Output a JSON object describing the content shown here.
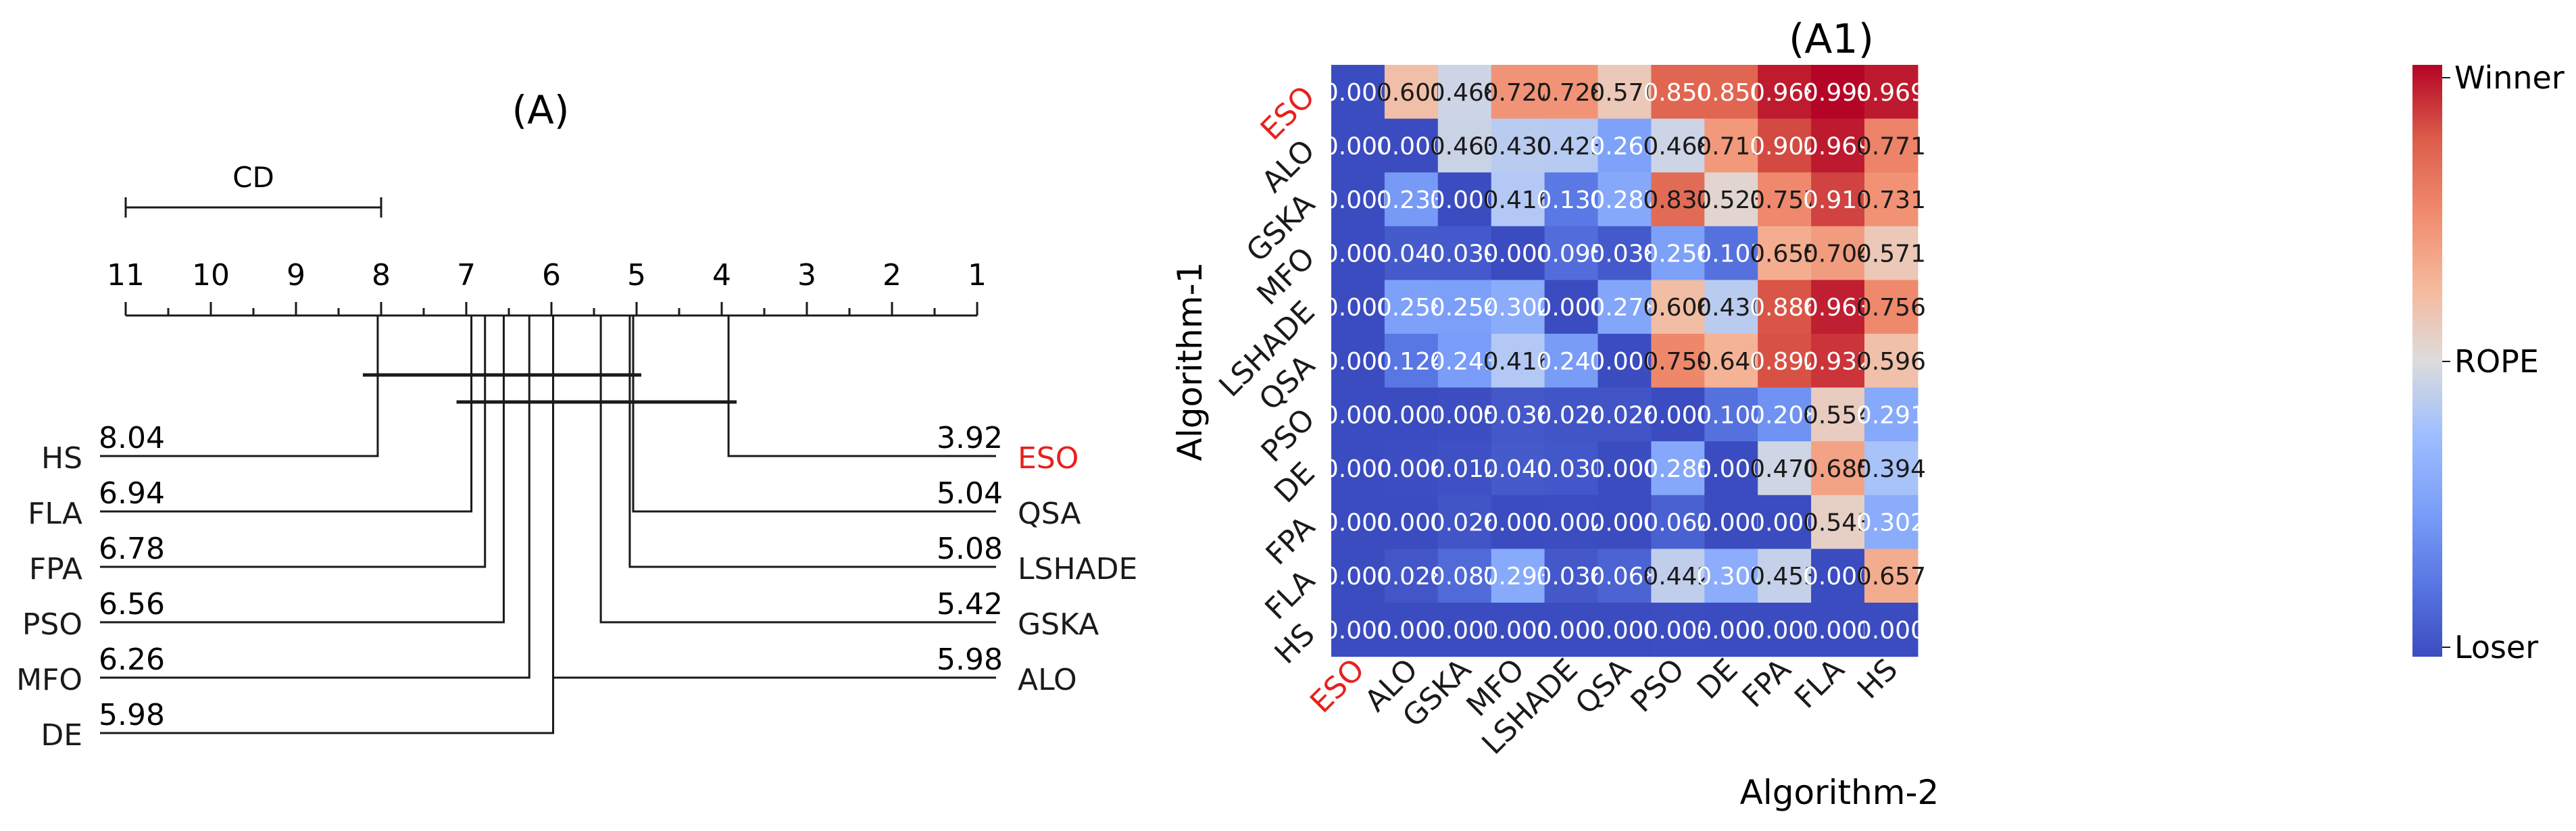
{
  "chart_data": [
    {
      "type": "critical-difference",
      "title": "(A)",
      "cd_label": "CD",
      "cd_value": 3.0,
      "axis": {
        "min": 1,
        "max": 11,
        "reversed": true,
        "tick_labels": [
          "11",
          "10",
          "9",
          "8",
          "7",
          "6",
          "5",
          "4",
          "3",
          "2",
          "1"
        ]
      },
      "left_side": [
        {
          "name": "HS",
          "rank": 8.04,
          "rank_label": "8.04",
          "highlight": false
        },
        {
          "name": "FLA",
          "rank": 6.94,
          "rank_label": "6.94",
          "highlight": false
        },
        {
          "name": "FPA",
          "rank": 6.78,
          "rank_label": "6.78",
          "highlight": false
        },
        {
          "name": "PSO",
          "rank": 6.56,
          "rank_label": "6.56",
          "highlight": false
        },
        {
          "name": "MFO",
          "rank": 6.26,
          "rank_label": "6.26",
          "highlight": false
        },
        {
          "name": "DE",
          "rank": 5.98,
          "rank_label": "5.98",
          "highlight": false
        }
      ],
      "right_side": [
        {
          "name": "ESO",
          "rank": 3.92,
          "rank_label": "3.92",
          "highlight": true
        },
        {
          "name": "QSA",
          "rank": 5.04,
          "rank_label": "5.04",
          "highlight": false
        },
        {
          "name": "LSHADE",
          "rank": 5.08,
          "rank_label": "5.08",
          "highlight": false
        },
        {
          "name": "GSKA",
          "rank": 5.42,
          "rank_label": "5.42",
          "highlight": false
        },
        {
          "name": "ALO",
          "rank": 5.98,
          "rank_label": "5.98",
          "highlight": false
        }
      ],
      "cliques": [
        {
          "from": 5.04,
          "to": 8.04
        },
        {
          "from": 3.92,
          "to": 6.94
        }
      ]
    },
    {
      "type": "heatmap",
      "title": "(A1)",
      "xlabel": "Algorithm-2",
      "ylabel": "Algorithm-1",
      "rows": [
        "ESO",
        "ALO",
        "GSKA",
        "MFO",
        "LSHADE",
        "QSA",
        "PSO",
        "DE",
        "FPA",
        "FLA",
        "HS"
      ],
      "cols": [
        "ESO",
        "ALO",
        "GSKA",
        "MFO",
        "LSHADE",
        "QSA",
        "PSO",
        "DE",
        "FPA",
        "FLA",
        "HS"
      ],
      "highlight_label": "ESO",
      "values": [
        [
          "0.000",
          "0.601",
          "0.468",
          "0.727",
          "0.728",
          "0.570",
          "0.850",
          "0.850",
          "0.968",
          "0.999",
          "0.969"
        ],
        [
          "0.000",
          "0.000",
          "0.463",
          "0.430",
          "0.423",
          "0.261",
          "0.468",
          "0.711",
          "0.902",
          "0.969",
          "0.771"
        ],
        [
          "0.001",
          "0.233",
          "0.000",
          "0.416",
          "0.130",
          "0.287",
          "0.837",
          "0.523",
          "0.757",
          "0.911",
          "0.731"
        ],
        [
          "0.000",
          "0.040",
          "0.039",
          "0.000",
          "0.095",
          "0.038",
          "0.256",
          "0.107",
          "0.655",
          "0.704",
          "0.571"
        ],
        [
          "0.000",
          "0.258",
          "0.254",
          "0.302",
          "0.000",
          "0.278",
          "0.606",
          "0.430",
          "0.886",
          "0.963",
          "0.756"
        ],
        [
          "0.000",
          "0.124",
          "0.243",
          "0.416",
          "0.241",
          "0.000",
          "0.759",
          "0.640",
          "0.892",
          "0.932",
          "0.596"
        ],
        [
          "0.000",
          "0.001",
          "0.005",
          "0.036",
          "0.026",
          "0.026",
          "0.000",
          "0.107",
          "0.208",
          "0.554",
          "0.291"
        ],
        [
          "0.000",
          "0.006",
          "0.012",
          "0.040",
          "0.031",
          "0.000",
          "0.285",
          "0.000",
          "0.470",
          "0.685",
          "0.394"
        ],
        [
          "0.000",
          "0.000",
          "0.026",
          "0.000",
          "0.002",
          "0.000",
          "0.062",
          "0.001",
          "0.000",
          "0.543",
          "0.302"
        ],
        [
          "0.000",
          "0.028",
          "0.087",
          "0.293",
          "0.036",
          "0.068",
          "0.442",
          "0.307",
          "0.453",
          "0.000",
          "0.657"
        ],
        [
          "0.000",
          "0.000",
          "0.001",
          "0.000",
          "0.000",
          "0.000",
          "0.003",
          "0.000",
          "0.001",
          "0.001",
          "0.000"
        ]
      ],
      "colorbar": {
        "top_label": "Winner",
        "mid_label": "ROPE",
        "bottom_label": "Loser",
        "vmin": 0,
        "vmax": 1
      },
      "colors": {
        "highlight": "#e8201c",
        "text_dark": "#1a1a1a",
        "text_light": "#ffffff"
      }
    }
  ]
}
